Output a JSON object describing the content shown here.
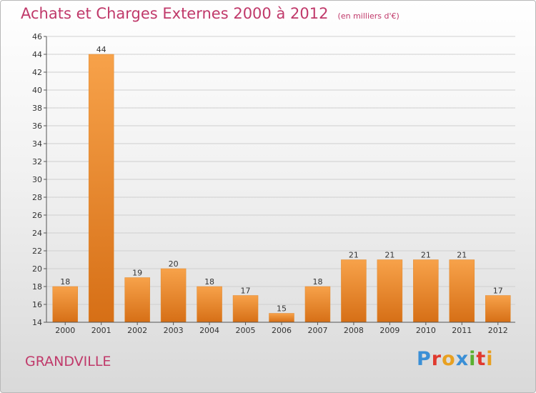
{
  "chart_data": {
    "type": "bar",
    "title": "Achats et Charges Externes 2000 à 2012",
    "subtitle": "(en milliers d'€)",
    "categories": [
      "2000",
      "2001",
      "2002",
      "2003",
      "2004",
      "2005",
      "2006",
      "2007",
      "2008",
      "2009",
      "2010",
      "2011",
      "2012"
    ],
    "values": [
      18,
      44,
      19,
      20,
      18,
      17,
      15,
      18,
      21,
      21,
      21,
      21,
      17
    ],
    "ylim": [
      14,
      46
    ],
    "yticks": [
      14,
      16,
      18,
      20,
      22,
      24,
      26,
      28,
      30,
      32,
      34,
      36,
      38,
      40,
      42,
      44,
      46
    ],
    "grid": true,
    "bar_color": "#f29a3c",
    "label_color": "#c0396a"
  },
  "location": "GRANDVILLE",
  "logo": {
    "text": "Proxiti",
    "letters": [
      {
        "ch": "P",
        "color": "#3a8fd6"
      },
      {
        "ch": "r",
        "color": "#e03a2f"
      },
      {
        "ch": "o",
        "color": "#e8a020"
      },
      {
        "ch": "x",
        "color": "#3a8fd6"
      },
      {
        "ch": "i",
        "color": "#5ab030"
      },
      {
        "ch": "t",
        "color": "#e03a2f"
      },
      {
        "ch": "i",
        "color": "#e8a020"
      }
    ]
  }
}
